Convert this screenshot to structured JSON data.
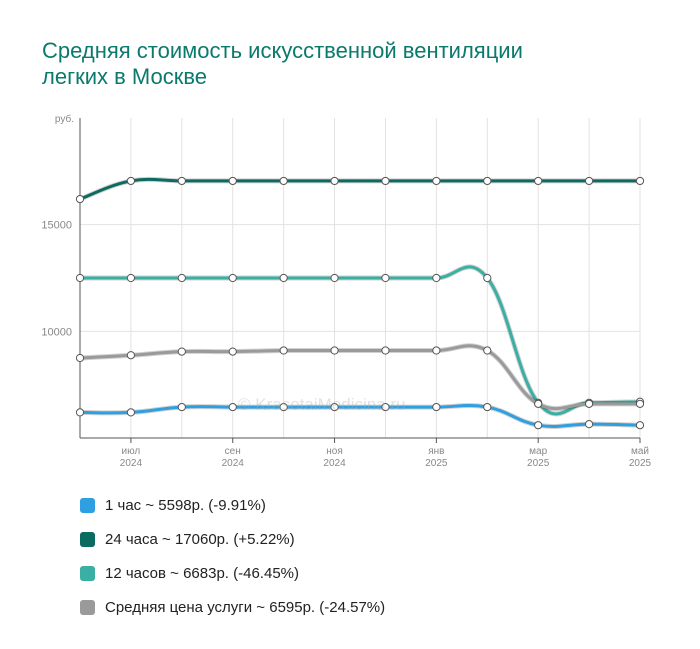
{
  "chart_data": {
    "type": "line",
    "title": "Средняя стоимость искусственной вентиляции легких в Москве",
    "ylabel": "руб.",
    "y_ticks": [
      {
        "value": 10000,
        "label": "10000"
      },
      {
        "value": 15000,
        "label": "15000"
      }
    ],
    "ylim": [
      5000,
      20000
    ],
    "x_count": 12,
    "x_ticks": [
      {
        "index": 1,
        "month": "июл",
        "year": "2024"
      },
      {
        "index": 3,
        "month": "сен",
        "year": "2024"
      },
      {
        "index": 5,
        "month": "ноя",
        "year": "2024"
      },
      {
        "index": 7,
        "month": "янв",
        "year": "2025"
      },
      {
        "index": 9,
        "month": "мар",
        "year": "2025"
      },
      {
        "index": 11,
        "month": "май",
        "year": "2025"
      }
    ],
    "grid": true,
    "legend_position": "bottom",
    "series": [
      {
        "color": "#2e9fe0",
        "values": [
          6200,
          6200,
          6450,
          6450,
          6450,
          6450,
          6450,
          6450,
          6450,
          5600,
          5650,
          5600
        ]
      },
      {
        "color": "#0c6b61",
        "values": [
          16200,
          17050,
          17050,
          17050,
          17050,
          17050,
          17050,
          17050,
          17050,
          17050,
          17050,
          17050
        ]
      },
      {
        "color": "#3aafa4",
        "values": [
          12500,
          12500,
          12500,
          12500,
          12500,
          12500,
          12500,
          12500,
          12500,
          6650,
          6650,
          6700
        ]
      },
      {
        "color": "#9a9a9a",
        "values": [
          8750,
          8880,
          9050,
          9050,
          9100,
          9100,
          9100,
          9100,
          9100,
          6600,
          6600,
          6600
        ]
      }
    ]
  },
  "legend": [
    {
      "label": "1 час ~ 5598р. (-9.91%)",
      "color": "#2e9fe0"
    },
    {
      "label": "24 часа ~ 17060р. (+5.22%)",
      "color": "#0c6b61"
    },
    {
      "label": "12 часов ~ 6683р. (-46.45%)",
      "color": "#3aafa4"
    },
    {
      "label": "Средняя цена услуги ~ 6595р. (-24.57%)",
      "color": "#9a9a9a"
    }
  ],
  "watermark": "© KrasotaiMedicina.ru"
}
